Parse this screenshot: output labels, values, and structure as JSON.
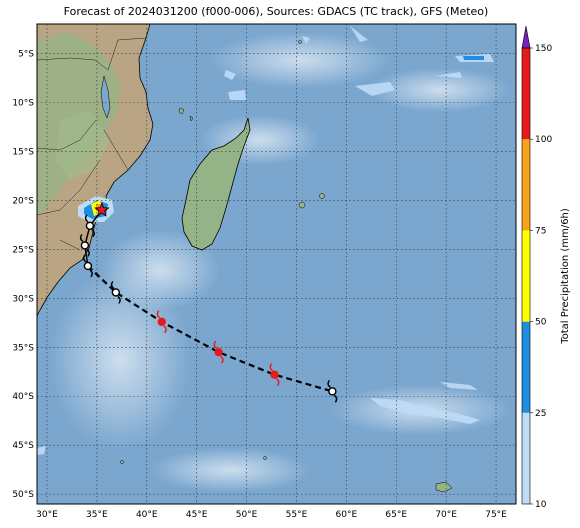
{
  "title": "Forecast of 2024031200 (f000-006), Sources: GDACS (TC track), GFS (Meteo)",
  "map": {
    "lon_range": [
      29,
      77
    ],
    "lat_range": [
      -51,
      -2
    ],
    "lon_ticks": [
      {
        "value": 30,
        "label": "30°E"
      },
      {
        "value": 35,
        "label": "35°E"
      },
      {
        "value": 40,
        "label": "40°E"
      },
      {
        "value": 45,
        "label": "45°E"
      },
      {
        "value": 50,
        "label": "50°E"
      },
      {
        "value": 55,
        "label": "55°E"
      },
      {
        "value": 60,
        "label": "60°E"
      },
      {
        "value": 65,
        "label": "65°E"
      },
      {
        "value": 70,
        "label": "70°E"
      },
      {
        "value": 75,
        "label": "75°E"
      }
    ],
    "lat_ticks": [
      {
        "value": -5,
        "label": "5°S"
      },
      {
        "value": -10,
        "label": "10°S"
      },
      {
        "value": -15,
        "label": "15°S"
      },
      {
        "value": -20,
        "label": "20°S"
      },
      {
        "value": -25,
        "label": "25°S"
      },
      {
        "value": -30,
        "label": "30°S"
      },
      {
        "value": -35,
        "label": "35°S"
      },
      {
        "value": -40,
        "label": "40°S"
      },
      {
        "value": -45,
        "label": "45°S"
      },
      {
        "value": -50,
        "label": "50°S"
      }
    ],
    "gridlines": true,
    "colors": {
      "ocean": "#7ba7cf",
      "land": "#b9a583",
      "land_green": "#8fb286"
    }
  },
  "track": {
    "history": [
      [
        35.5,
        -21.0
      ],
      [
        34.3,
        -22.6
      ],
      [
        33.8,
        -24.6
      ],
      [
        34.1,
        -26.7
      ]
    ],
    "forecast": [
      [
        34.1,
        -26.7
      ],
      [
        36.9,
        -29.4
      ],
      [
        41.5,
        -32.4
      ],
      [
        47.2,
        -35.5
      ],
      [
        52.8,
        -37.8
      ],
      [
        58.6,
        -39.5
      ]
    ],
    "points": [
      {
        "lon": 34.3,
        "lat": -22.6,
        "category": "low"
      },
      {
        "lon": 33.8,
        "lat": -24.6,
        "category": "low"
      },
      {
        "lon": 34.1,
        "lat": -26.7,
        "category": "low"
      },
      {
        "lon": 36.9,
        "lat": -29.4,
        "category": "low"
      },
      {
        "lon": 41.5,
        "lat": -32.4,
        "category": "high"
      },
      {
        "lon": 47.2,
        "lat": -35.5,
        "category": "high"
      },
      {
        "lon": 52.8,
        "lat": -37.8,
        "category": "high"
      },
      {
        "lon": 58.6,
        "lat": -39.5,
        "category": "low"
      }
    ],
    "current_position": {
      "lon": 35.5,
      "lat": -21.0
    },
    "colors": {
      "low": "#000000",
      "high": "#e8191c",
      "star": "#e8191c"
    }
  },
  "colorbar": {
    "label": "Total Precipitation (mm/6h)",
    "levels": [
      {
        "value": 10,
        "label": "10"
      },
      {
        "value": 25,
        "label": "25"
      },
      {
        "value": 50,
        "label": "50"
      },
      {
        "value": 75,
        "label": "75"
      },
      {
        "value": 100,
        "label": "100"
      },
      {
        "value": 150,
        "label": "150"
      }
    ],
    "colors": [
      "#bfdcf7",
      "#1e8ee2",
      "#ffff00",
      "#f7a41c",
      "#e8191c"
    ],
    "extend_color": "#7b1fbf"
  }
}
